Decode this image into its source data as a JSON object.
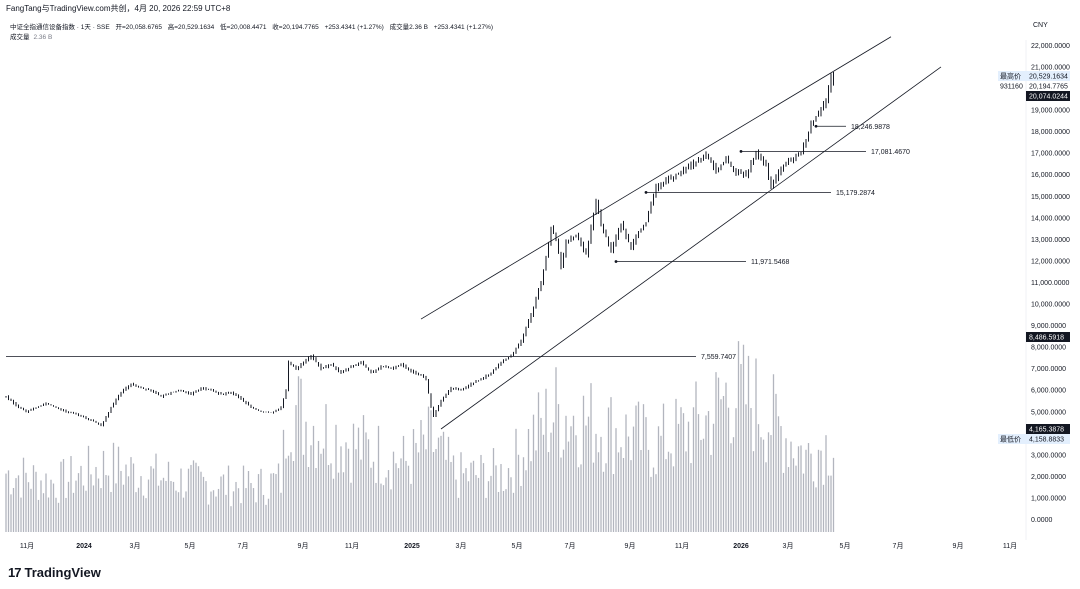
{
  "header": {
    "author": "FangTang与TradingView.com共创，4月 20, 2026 22:59 UTC+8",
    "symbol": "中证全指通信设备指数 · 1天 · SSE",
    "open": "开=20,058.6765",
    "high": "高=20,529.1634",
    "low": "低=20,008.4471",
    "close": "收=20,194.7765",
    "change": "+253.4341 (+1.27%)",
    "volume_label": "成交量2.36 B",
    "volume_change": "+253.4341 (+1.27%)",
    "volume_pane_label": "成交量",
    "volume_pane_value": "2.36 B"
  },
  "footer": {
    "logo_text": "TradingView",
    "logo_mark": "17"
  },
  "colors": {
    "candle": "#131722",
    "volume": "#b2b5be",
    "accent": "#131722",
    "highlight_bg": "#e3effd",
    "dark_bg": "#131722"
  },
  "chart_data": {
    "type": "candlestick",
    "currency": "CNY",
    "y_axis": {
      "range": [
        0,
        22000
      ],
      "ticks": [
        "22,000.0000",
        "21,000.0000",
        "19,000.0000",
        "18,000.0000",
        "17,000.0000",
        "16,000.0000",
        "15,000.0000",
        "14,000.0000",
        "13,000.0000",
        "12,000.0000",
        "11,000.0000",
        "10,000.0000",
        "9,000.0000",
        "8,000.0000",
        "7,000.0000",
        "6,000.0000",
        "5,000.0000",
        "4,000.0000",
        "3,000.0000",
        "2,000.0000",
        "1,000.0000",
        "0.0000"
      ]
    },
    "x_axis": {
      "ticks": [
        "11月",
        "2024",
        "3月",
        "5月",
        "7月",
        "9月",
        "11月",
        "2025",
        "3月",
        "5月",
        "7月",
        "9月",
        "11月",
        "2026",
        "3月",
        "5月",
        "7月",
        "9月",
        "11月"
      ],
      "bold_ticks": [
        "2024",
        "2025",
        "2026"
      ]
    },
    "ohlc_last": {
      "open": 20058.6765,
      "high": 20529.1634,
      "low": 20008.4471,
      "close": 20194.7765
    },
    "price_path": [
      [
        0,
        5700
      ],
      [
        2,
        5300
      ],
      [
        4,
        5000
      ],
      [
        6,
        5200
      ],
      [
        8,
        5400
      ],
      [
        10,
        5200
      ],
      [
        12,
        5000
      ],
      [
        14,
        4900
      ],
      [
        16,
        4700
      ],
      [
        18,
        4500
      ],
      [
        19,
        4350
      ],
      [
        21,
        5200
      ],
      [
        23,
        5900
      ],
      [
        25,
        6300
      ],
      [
        27,
        6100
      ],
      [
        29,
        6000
      ],
      [
        31,
        5700
      ],
      [
        33,
        5900
      ],
      [
        35,
        6000
      ],
      [
        37,
        5800
      ],
      [
        39,
        6100
      ],
      [
        41,
        6000
      ],
      [
        43,
        5800
      ],
      [
        45,
        5900
      ],
      [
        47,
        5600
      ],
      [
        49,
        5200
      ],
      [
        51,
        5000
      ],
      [
        53,
        4950
      ],
      [
        55,
        5200
      ],
      [
        56,
        6000
      ],
      [
        56.5,
        7300
      ],
      [
        58,
        7000
      ],
      [
        60,
        7400
      ],
      [
        61,
        7600
      ],
      [
        63,
        7000
      ],
      [
        65,
        7200
      ],
      [
        67,
        6800
      ],
      [
        69,
        7100
      ],
      [
        71,
        7300
      ],
      [
        73,
        6800
      ],
      [
        75,
        7100
      ],
      [
        77,
        7000
      ],
      [
        79,
        7200
      ],
      [
        81,
        6900
      ],
      [
        83,
        6700
      ],
      [
        84,
        6500
      ],
      [
        85,
        5200
      ],
      [
        85.5,
        4800
      ],
      [
        87,
        5500
      ],
      [
        89,
        6100
      ],
      [
        91,
        6000
      ],
      [
        93,
        6300
      ],
      [
        95,
        6500
      ],
      [
        97,
        6800
      ],
      [
        99,
        7300
      ],
      [
        101,
        7600
      ],
      [
        103,
        8300
      ],
      [
        105,
        9500
      ],
      [
        107,
        11000
      ],
      [
        108,
        12200
      ],
      [
        109,
        13500
      ],
      [
        110,
        13000
      ],
      [
        111,
        11700
      ],
      [
        112,
        12900
      ],
      [
        114,
        13200
      ],
      [
        116,
        12300
      ],
      [
        118,
        14800
      ],
      [
        119,
        13700
      ],
      [
        121,
        12500
      ],
      [
        123,
        13700
      ],
      [
        125,
        12600
      ],
      [
        126,
        13200
      ],
      [
        128,
        13800
      ],
      [
        130,
        15400
      ],
      [
        132,
        15700
      ],
      [
        134,
        16000
      ],
      [
        136,
        16300
      ],
      [
        138,
        16600
      ],
      [
        140,
        16900
      ],
      [
        142,
        16200
      ],
      [
        144,
        16700
      ],
      [
        146,
        16100
      ],
      [
        148,
        16000
      ],
      [
        150,
        17000
      ],
      [
        152,
        16400
      ],
      [
        153,
        15400
      ],
      [
        155,
        16300
      ],
      [
        157,
        16700
      ],
      [
        159,
        17000
      ],
      [
        161,
        18300
      ],
      [
        162,
        18700
      ],
      [
        164,
        19500
      ],
      [
        165,
        20529
      ],
      [
        165.5,
        20195
      ]
    ],
    "volume_path": [
      [
        0,
        1700
      ],
      [
        10,
        1400
      ],
      [
        20,
        1900
      ],
      [
        30,
        1600
      ],
      [
        40,
        1400
      ],
      [
        50,
        1300
      ],
      [
        55,
        1500
      ],
      [
        56.5,
        3800
      ],
      [
        60,
        3200
      ],
      [
        70,
        2500
      ],
      [
        80,
        2000
      ],
      [
        85,
        2600
      ],
      [
        90,
        1600
      ],
      [
        100,
        1700
      ],
      [
        105,
        2700
      ],
      [
        110,
        3500
      ],
      [
        120,
        3000
      ],
      [
        130,
        2500
      ],
      [
        140,
        3200
      ],
      [
        145,
        4100
      ],
      [
        150,
        3700
      ],
      [
        160,
        2200
      ],
      [
        165,
        2600
      ]
    ],
    "levels": [
      {
        "label": "7,559.7407",
        "value": 7559.7407
      },
      {
        "label": "11,971.5468",
        "value": 11971.5468
      },
      {
        "label": "15,179.2874",
        "value": 15179.2874
      },
      {
        "label": "17,081.4670",
        "value": 17081.467
      },
      {
        "label": "18,246.9878",
        "value": 18246.9878
      }
    ],
    "channel_lines": [
      {
        "name": "upper",
        "start": [
          83,
          9300
        ],
        "end": [
          177,
          22400
        ]
      },
      {
        "name": "lower",
        "start": [
          87,
          4200
        ],
        "end": [
          187,
          21000
        ]
      }
    ],
    "price_tags": [
      {
        "label": "最高价",
        "value": "20,529.1634",
        "style": "light"
      },
      {
        "label": "931160",
        "value": "20,194.7765",
        "style": "plain"
      },
      {
        "label": "",
        "value": "20,074.0244",
        "style": "dark"
      },
      {
        "label": "",
        "value": "8,486.5918",
        "style": "dark"
      },
      {
        "label": "",
        "value": "4,165.3878",
        "style": "dark"
      },
      {
        "label": "最低价",
        "value": "4,158.8833",
        "style": "light"
      }
    ]
  }
}
